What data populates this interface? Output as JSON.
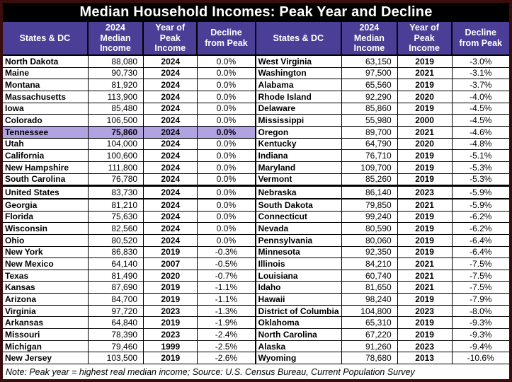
{
  "colors": {
    "frame": "#3b0c0c",
    "title_bg": "#000000",
    "header_bg": "#4b3e97",
    "highlight": "#b0a3e2"
  },
  "chart_data": {
    "type": "table",
    "title": "Median Household Incomes: Peak Year and Decline",
    "columns": [
      "States & DC",
      "2024 Median Income",
      "Year of Peak Income",
      "Decline from Peak"
    ],
    "note": "Note: Peak year = highest real median income; Source: U.S. Census Bureau, Current Population Survey",
    "left_rows": [
      {
        "state": "North Dakota",
        "income": "88,080",
        "year": "2024",
        "decline": "0.0%"
      },
      {
        "state": "Maine",
        "income": "90,730",
        "year": "2024",
        "decline": "0.0%"
      },
      {
        "state": "Montana",
        "income": "81,920",
        "year": "2024",
        "decline": "0.0%"
      },
      {
        "state": "Massachusetts",
        "income": "113,900",
        "year": "2024",
        "decline": "0.0%"
      },
      {
        "state": "Iowa",
        "income": "85,480",
        "year": "2024",
        "decline": "0.0%"
      },
      {
        "state": "Colorado",
        "income": "106,500",
        "year": "2024",
        "decline": "0.0%"
      },
      {
        "state": "Tennessee",
        "income": "75,860",
        "year": "2024",
        "decline": "0.0%",
        "highlight": true
      },
      {
        "state": "Utah",
        "income": "104,000",
        "year": "2024",
        "decline": "0.0%"
      },
      {
        "state": "California",
        "income": "100,600",
        "year": "2024",
        "decline": "0.0%"
      },
      {
        "state": "New Hampshire",
        "income": "111,800",
        "year": "2024",
        "decline": "0.0%"
      },
      {
        "state": "South Carolina",
        "income": "76,780",
        "year": "2024",
        "decline": "0.0%"
      },
      {
        "state": "United States",
        "income": "83,730",
        "year": "2024",
        "decline": "0.0%",
        "emph": true
      },
      {
        "state": "Georgia",
        "income": "81,210",
        "year": "2024",
        "decline": "0.0%"
      },
      {
        "state": "Florida",
        "income": "75,630",
        "year": "2024",
        "decline": "0.0%"
      },
      {
        "state": "Wisconsin",
        "income": "82,560",
        "year": "2024",
        "decline": "0.0%"
      },
      {
        "state": "Ohio",
        "income": "80,520",
        "year": "2024",
        "decline": "0.0%"
      },
      {
        "state": "New York",
        "income": "86,830",
        "year": "2019",
        "decline": "-0.3%"
      },
      {
        "state": "New Mexico",
        "income": "64,140",
        "year": "2007",
        "decline": "-0.5%"
      },
      {
        "state": "Texas",
        "income": "81,490",
        "year": "2020",
        "decline": "-0.7%"
      },
      {
        "state": "Kansas",
        "income": "87,690",
        "year": "2019",
        "decline": "-1.1%"
      },
      {
        "state": "Arizona",
        "income": "84,700",
        "year": "2019",
        "decline": "-1.1%"
      },
      {
        "state": "Virginia",
        "income": "97,720",
        "year": "2023",
        "decline": "-1.3%"
      },
      {
        "state": "Arkansas",
        "income": "64,840",
        "year": "2019",
        "decline": "-1.9%"
      },
      {
        "state": "Missouri",
        "income": "78,390",
        "year": "2023",
        "decline": "-2.4%"
      },
      {
        "state": "Michigan",
        "income": "79,460",
        "year": "1999",
        "decline": "-2.5%"
      },
      {
        "state": "New Jersey",
        "income": "103,500",
        "year": "2019",
        "decline": "-2.6%"
      }
    ],
    "right_rows": [
      {
        "state": "West Virginia",
        "income": "63,150",
        "year": "2019",
        "decline": "-3.0%"
      },
      {
        "state": "Washington",
        "income": "97,500",
        "year": "2021",
        "decline": "-3.1%"
      },
      {
        "state": "Alabama",
        "income": "65,560",
        "year": "2019",
        "decline": "-3.7%"
      },
      {
        "state": "Rhode Island",
        "income": "92,290",
        "year": "2020",
        "decline": "-4.0%"
      },
      {
        "state": "Delaware",
        "income": "85,860",
        "year": "2019",
        "decline": "-4.5%"
      },
      {
        "state": "Mississippi",
        "income": "55,980",
        "year": "2000",
        "decline": "-4.5%"
      },
      {
        "state": "Oregon",
        "income": "89,700",
        "year": "2021",
        "decline": "-4.6%"
      },
      {
        "state": "Kentucky",
        "income": "64,790",
        "year": "2020",
        "decline": "-4.8%"
      },
      {
        "state": "Indiana",
        "income": "76,710",
        "year": "2019",
        "decline": "-5.1%"
      },
      {
        "state": "Maryland",
        "income": "109,700",
        "year": "2019",
        "decline": "-5.3%"
      },
      {
        "state": "Vermont",
        "income": "85,260",
        "year": "2019",
        "decline": "-5.3%"
      },
      {
        "state": "Nebraska",
        "income": "86,140",
        "year": "2023",
        "decline": "-5.9%",
        "emph": true
      },
      {
        "state": "South Dakota",
        "income": "79,850",
        "year": "2021",
        "decline": "-5.9%"
      },
      {
        "state": "Connecticut",
        "income": "99,240",
        "year": "2019",
        "decline": "-6.2%"
      },
      {
        "state": "Nevada",
        "income": "80,590",
        "year": "2019",
        "decline": "-6.2%"
      },
      {
        "state": "Pennsylvania",
        "income": "80,060",
        "year": "2019",
        "decline": "-6.4%"
      },
      {
        "state": "Minnesota",
        "income": "92,350",
        "year": "2019",
        "decline": "-6.4%"
      },
      {
        "state": "Illinois",
        "income": "84,210",
        "year": "2021",
        "decline": "-7.5%"
      },
      {
        "state": "Louisiana",
        "income": "60,740",
        "year": "2021",
        "decline": "-7.5%"
      },
      {
        "state": "Idaho",
        "income": "81,650",
        "year": "2021",
        "decline": "-7.5%"
      },
      {
        "state": "Hawaii",
        "income": "98,240",
        "year": "2019",
        "decline": "-7.9%"
      },
      {
        "state": "District of Columbia",
        "income": "104,800",
        "year": "2023",
        "decline": "-8.0%"
      },
      {
        "state": "Oklahoma",
        "income": "65,310",
        "year": "2019",
        "decline": "-9.3%"
      },
      {
        "state": "North Carolina",
        "income": "67,220",
        "year": "2019",
        "decline": "-9.3%"
      },
      {
        "state": "Alaska",
        "income": "91,260",
        "year": "2023",
        "decline": "-9.4%"
      },
      {
        "state": "Wyoming",
        "income": "78,680",
        "year": "2013",
        "decline": "-10.6%"
      }
    ]
  }
}
